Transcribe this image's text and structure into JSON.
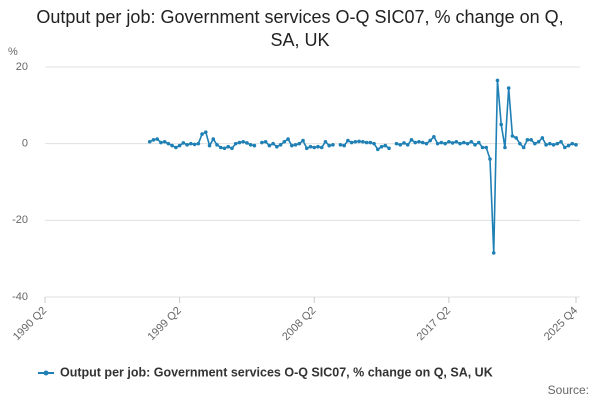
{
  "chart_data": {
    "type": "line",
    "title": "Output per job: Government services O-Q SIC07, % change on Q, SA, UK",
    "y_unit": "%",
    "source": "Source:",
    "categories": [
      "1990 Q2",
      null,
      null,
      null,
      null,
      null,
      null,
      null,
      null,
      null,
      null,
      null,
      null,
      null,
      null,
      null,
      null,
      null,
      null,
      null,
      null,
      null,
      null,
      null,
      null,
      null,
      null,
      null,
      null,
      null,
      null,
      null,
      null,
      null,
      null,
      null,
      "1999 Q2",
      null,
      null,
      null,
      null,
      null,
      null,
      null,
      null,
      null,
      null,
      null,
      null,
      null,
      null,
      null,
      null,
      null,
      null,
      null,
      null,
      null,
      null,
      null,
      null,
      null,
      null,
      null,
      null,
      null,
      null,
      null,
      null,
      null,
      null,
      null,
      "2008 Q2",
      null,
      null,
      null,
      null,
      null,
      null,
      null,
      null,
      null,
      null,
      null,
      null,
      null,
      null,
      null,
      null,
      null,
      null,
      null,
      null,
      null,
      null,
      null,
      null,
      null,
      null,
      null,
      null,
      null,
      null,
      null,
      null,
      null,
      null,
      null,
      "2017 Q2",
      null,
      null,
      null,
      null,
      null,
      null,
      null,
      null,
      null,
      null,
      null,
      null,
      null,
      null,
      null,
      null,
      null,
      null,
      null,
      null,
      null,
      null,
      null,
      null,
      null,
      null,
      null,
      null,
      null,
      null,
      null,
      null,
      null,
      "2025 Q4"
    ],
    "series": [
      {
        "name": "Output per job: Government services O-Q SIC07, % change on Q, SA, UK",
        "color": "#1f80b5",
        "values": [
          null,
          null,
          null,
          null,
          null,
          null,
          null,
          null,
          null,
          null,
          null,
          null,
          null,
          null,
          null,
          null,
          null,
          null,
          null,
          null,
          null,
          null,
          null,
          null,
          null,
          null,
          null,
          null,
          0.5,
          1.0,
          1.2,
          0.3,
          0.5,
          0.0,
          -0.5,
          -1.0,
          -0.5,
          0.2,
          -0.3,
          0.0,
          -0.2,
          0.0,
          2.5,
          3.0,
          -0.5,
          1.2,
          -0.3,
          -1.0,
          -1.2,
          -0.8,
          -1.2,
          0.0,
          0.3,
          0.5,
          0.2,
          -0.3,
          -0.5,
          null,
          0.3,
          0.5,
          -0.5,
          0.0,
          -0.8,
          -0.3,
          0.5,
          1.2,
          -0.5,
          -0.3,
          0.0,
          0.8,
          -1.2,
          -0.8,
          -1.0,
          -0.8,
          -1.0,
          0.5,
          -0.5,
          -0.3,
          null,
          -0.3,
          -0.5,
          0.8,
          0.3,
          0.5,
          0.6,
          0.5,
          0.3,
          0.3,
          0.0,
          -1.5,
          -0.8,
          -0.5,
          -1.2,
          null,
          0.0,
          -0.3,
          0.2,
          -0.3,
          1.0,
          0.3,
          0.5,
          0.3,
          0.0,
          0.8,
          1.8,
          0.0,
          0.3,
          0.0,
          0.5,
          0.2,
          0.5,
          0.0,
          0.3,
          0.0,
          0.5,
          -0.3,
          0.3,
          -1.0,
          -1.0,
          -4.0,
          -28.5,
          16.5,
          5.0,
          -1.0,
          14.5,
          2.0,
          1.5,
          0.0,
          -1.0,
          1.0,
          1.0,
          0.0,
          0.5,
          1.5,
          -0.3,
          0.0,
          -0.3,
          0.0,
          0.5,
          -1.0,
          -0.5,
          0.0,
          -0.3
        ]
      }
    ],
    "ylim": [
      -40,
      20
    ],
    "yticks": [
      -40,
      -20,
      0,
      20
    ],
    "grid": true
  }
}
